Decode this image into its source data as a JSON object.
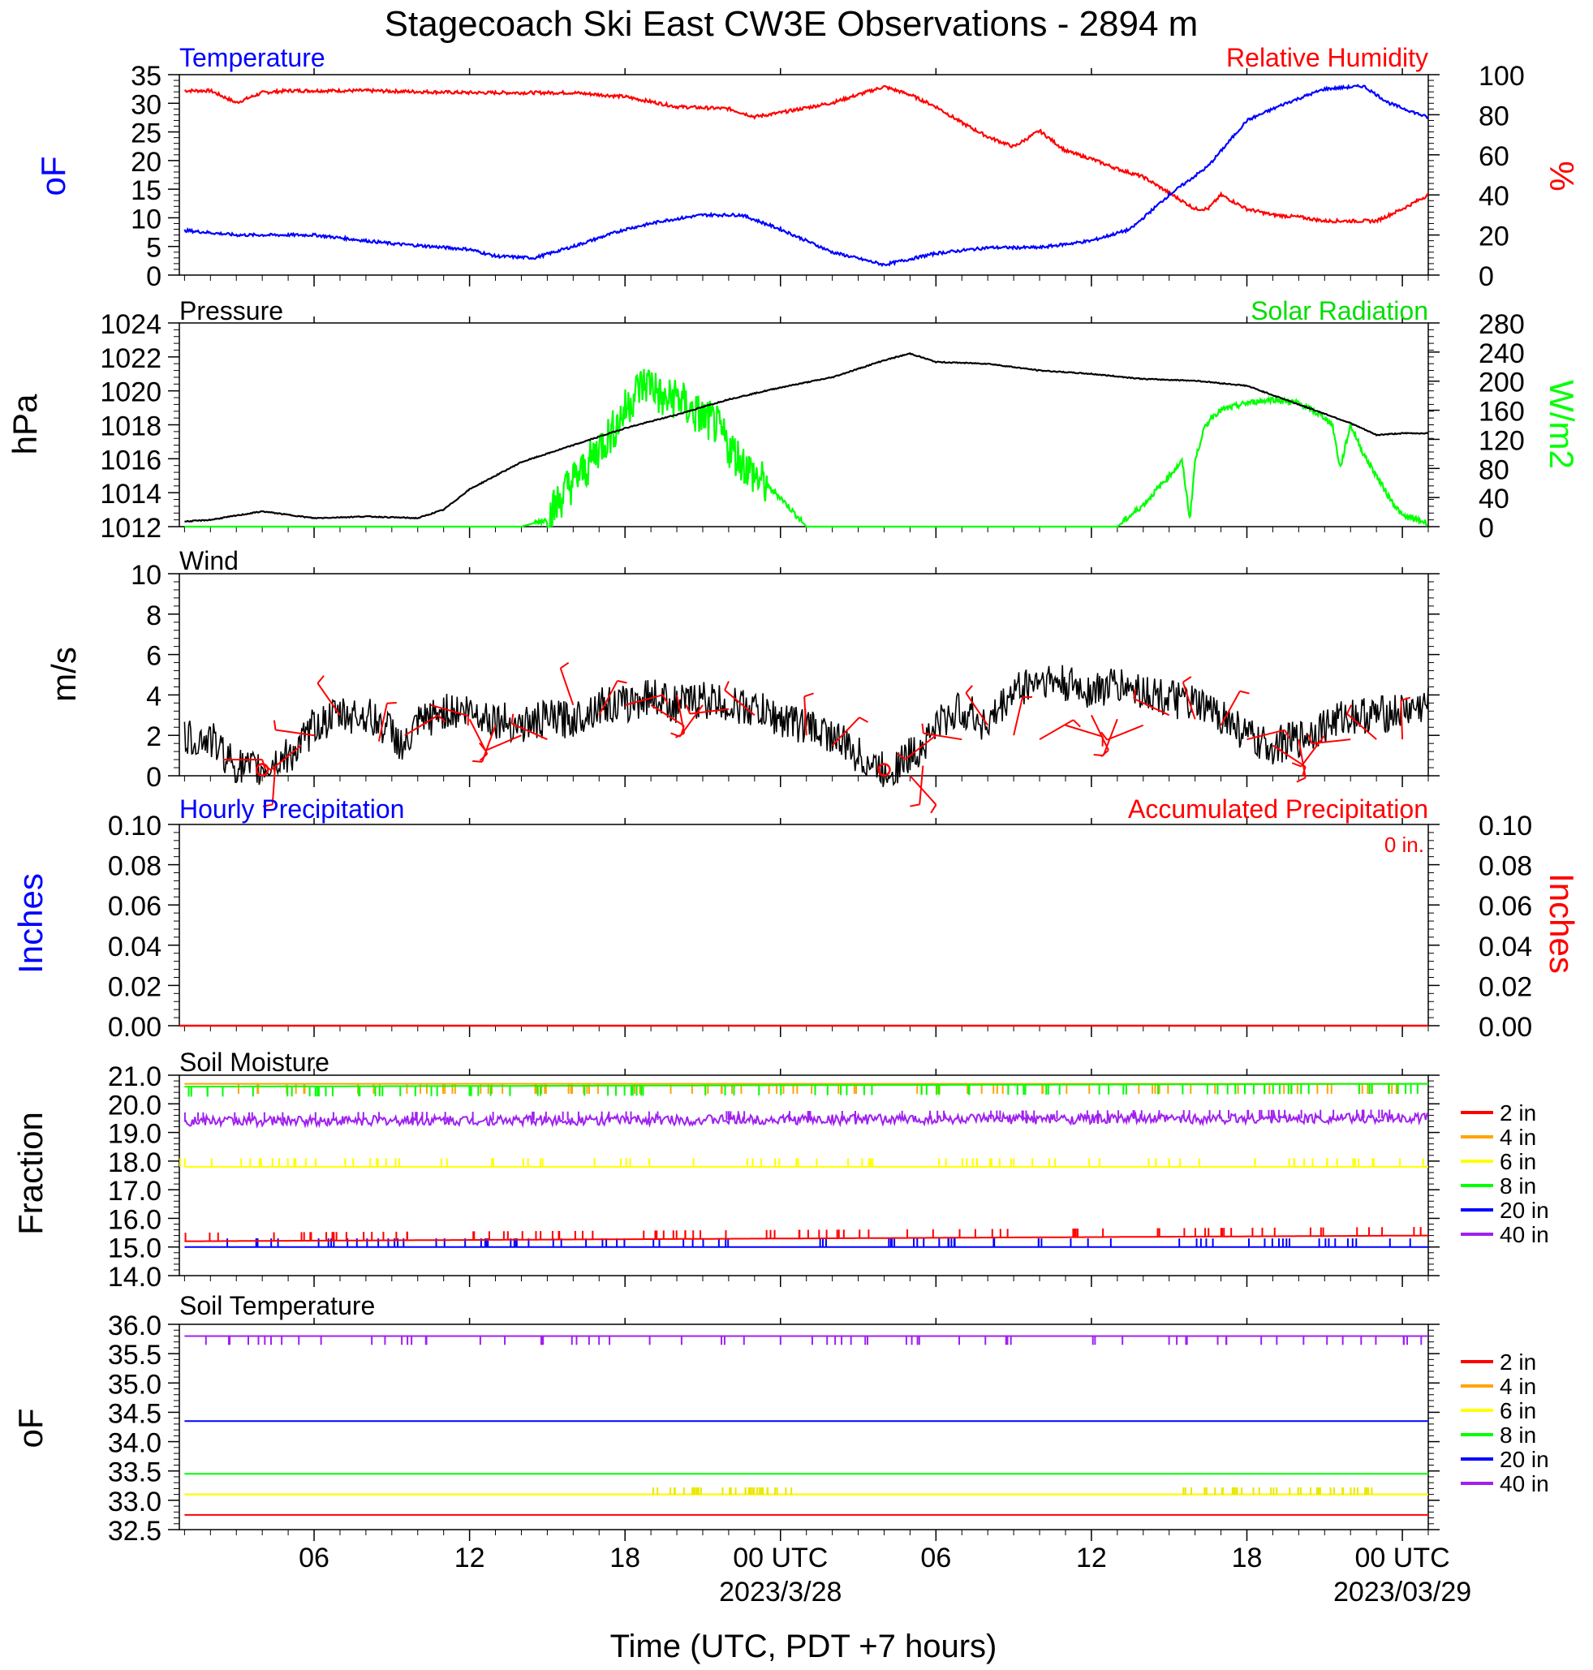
{
  "title": "Stagecoach Ski East CW3E Observations - 2894 m",
  "xlabel": "Time (UTC, PDT +7 hours)",
  "x_ticks": [
    {
      "t": 6,
      "label": "06",
      "sub": ""
    },
    {
      "t": 12,
      "label": "12",
      "sub": ""
    },
    {
      "t": 18,
      "label": "18",
      "sub": ""
    },
    {
      "t": 24,
      "label": "00 UTC",
      "sub": "2023/3/28"
    },
    {
      "t": 30,
      "label": "06",
      "sub": ""
    },
    {
      "t": 36,
      "label": "12",
      "sub": ""
    },
    {
      "t": 42,
      "label": "18",
      "sub": ""
    },
    {
      "t": 48,
      "label": "00 UTC",
      "sub": "2023/03/29"
    }
  ],
  "x_range_hours": [
    0.8,
    49.0
  ],
  "colors": {
    "temperature": "#0000ff",
    "humidity": "#ff0000",
    "pressure": "#000000",
    "solar": "#00ff00",
    "wind": "#000000",
    "barbs": "#ff0000",
    "depth_2in": "#ff0000",
    "depth_4in": "#ffa500",
    "depth_6in": "#ffff00",
    "depth_8in": "#00ff00",
    "depth_20in": "#0000ff",
    "depth_40in": "#a020f0"
  },
  "panels": {
    "temp_rh": {
      "left_title": "Temperature",
      "right_title": "Relative Humidity",
      "ylabel_left": "oF",
      "ylabel_right": "%",
      "yticks_left": [
        "0",
        "5",
        "10",
        "15",
        "20",
        "25",
        "30",
        "35"
      ],
      "yticks_right": [
        "0",
        "20",
        "40",
        "60",
        "80",
        "100"
      ]
    },
    "pressure_solar": {
      "left_title": "Pressure",
      "right_title": "Solar Radiation",
      "ylabel_left": "hPa",
      "ylabel_right": "W/m2",
      "yticks_left": [
        "1012",
        "1014",
        "1016",
        "1018",
        "1020",
        "1022",
        "1024"
      ],
      "yticks_right": [
        "0",
        "40",
        "80",
        "120",
        "160",
        "200",
        "240",
        "280"
      ]
    },
    "wind": {
      "left_title": "Wind",
      "ylabel_left": "m/s",
      "yticks_left": [
        "0",
        "2",
        "4",
        "6",
        "8",
        "10"
      ]
    },
    "precip": {
      "left_title": "Hourly Precipitation",
      "right_title": "Accumulated Precipitation",
      "accum_note": "0 in.",
      "ylabel_left": "Inches",
      "ylabel_right": "Inches",
      "yticks_left": [
        "0.00",
        "0.02",
        "0.04",
        "0.06",
        "0.08",
        "0.10"
      ],
      "yticks_right": [
        "0.00",
        "0.02",
        "0.04",
        "0.06",
        "0.08",
        "0.10"
      ]
    },
    "soil_moisture": {
      "left_title": "Soil Moisture",
      "ylabel_left": "Fraction",
      "yticks_left": [
        "14.0",
        "15.0",
        "16.0",
        "17.0",
        "18.0",
        "19.0",
        "20.0",
        "21.0"
      ],
      "legend": [
        "2 in",
        "4 in",
        "6 in",
        "8 in",
        "20 in",
        "40 in"
      ]
    },
    "soil_temp": {
      "left_title": "Soil Temperature",
      "ylabel_left": "oF",
      "yticks_left": [
        "32.5",
        "33.0",
        "33.5",
        "34.0",
        "34.5",
        "35.0",
        "35.5",
        "36.0"
      ],
      "legend": [
        "2 in",
        "4 in",
        "6 in",
        "8 in",
        "20 in",
        "40 in"
      ]
    }
  },
  "chart_data": [
    {
      "type": "line",
      "title": "Temperature / Relative Humidity",
      "xlabel": "Time (UTC, PDT +7 hours)",
      "ylabel": "oF / %",
      "ylim_left": [
        0,
        35
      ],
      "ylim_right": [
        0,
        100
      ],
      "series": [
        {
          "name": "Temperature",
          "axis": "left",
          "x": [
            1,
            3,
            6,
            9,
            12,
            13,
            14.5,
            16,
            18,
            19.5,
            21,
            22.5,
            24,
            26,
            28,
            30,
            32,
            34,
            36,
            37.5,
            39,
            40.5,
            42,
            43.5,
            45,
            46.5,
            47.5,
            49
          ],
          "y": [
            7.8,
            7,
            7,
            5.5,
            4.5,
            3.3,
            3,
            5,
            8,
            9.5,
            10.5,
            10.5,
            8,
            4,
            1.8,
            3.8,
            4.8,
            4.8,
            6,
            8,
            14,
            19,
            27,
            30,
            32.5,
            33,
            30,
            27.5
          ]
        },
        {
          "name": "Relative Humidity",
          "axis": "right",
          "x": [
            1,
            2,
            3,
            4,
            5,
            8,
            12,
            16,
            18,
            20,
            22,
            23,
            24,
            26,
            28,
            29,
            30,
            31,
            32,
            33,
            34,
            35,
            36,
            37,
            38,
            39,
            40,
            40.5,
            41,
            42,
            43,
            44,
            45,
            46,
            47,
            48,
            49
          ],
          "y": [
            92,
            92,
            86,
            91,
            92,
            92,
            91,
            91,
            89,
            84,
            83,
            79,
            81,
            86,
            94,
            90,
            84,
            76,
            69,
            64,
            72,
            62,
            58,
            53,
            49,
            41,
            33,
            33,
            40,
            33,
            30,
            29,
            27,
            27,
            27,
            33,
            40
          ]
        }
      ]
    },
    {
      "type": "line",
      "title": "Pressure / Solar Radiation",
      "xlabel": "Time (UTC, PDT +7 hours)",
      "ylabel": "hPa / W/m2",
      "ylim_left": [
        1012,
        1024
      ],
      "ylim_right": [
        0,
        280
      ],
      "series": [
        {
          "name": "Pressure",
          "axis": "left",
          "x": [
            1,
            2,
            4,
            6,
            8,
            10,
            11,
            12,
            14,
            16,
            18,
            20,
            22,
            24,
            26,
            28,
            29,
            30,
            32,
            34,
            36,
            38,
            40,
            42,
            44,
            46,
            47,
            48,
            49
          ],
          "y": [
            1012.3,
            1012.4,
            1012.9,
            1012.5,
            1012.6,
            1012.5,
            1013,
            1014.2,
            1015.8,
            1016.8,
            1017.8,
            1018.6,
            1019.5,
            1020.2,
            1020.8,
            1021.8,
            1022.2,
            1021.7,
            1021.6,
            1021.2,
            1021,
            1020.7,
            1020.6,
            1020.3,
            1019.2,
            1018.1,
            1017.4,
            1017.5,
            1017.5
          ]
        },
        {
          "name": "Solar Radiation",
          "axis": "right",
          "x": [
            1,
            12,
            14,
            15,
            15.8,
            16.5,
            17,
            17.5,
            18,
            18.5,
            19,
            19.5,
            20,
            20.5,
            21,
            21.5,
            22,
            22.5,
            23,
            24,
            25,
            26,
            28,
            30,
            32,
            34,
            36,
            37,
            38,
            39,
            39.5,
            39.8,
            40,
            40.3,
            40.6,
            41,
            41.5,
            42,
            43,
            44,
            44.5,
            45,
            45.3,
            45.6,
            46,
            46.5,
            47,
            47.5,
            48,
            49
          ],
          "y": [
            0,
            0,
            0,
            10,
            55,
            80,
            110,
            130,
            160,
            190,
            200,
            170,
            180,
            160,
            150,
            140,
            110,
            90,
            70,
            40,
            0,
            0,
            0,
            0,
            0,
            0,
            0,
            0,
            30,
            70,
            90,
            10,
            90,
            130,
            150,
            160,
            165,
            170,
            175,
            170,
            160,
            150,
            140,
            80,
            140,
            100,
            70,
            40,
            15,
            5
          ]
        }
      ]
    },
    {
      "type": "line",
      "title": "Wind",
      "xlabel": "Time (UTC, PDT +7 hours)",
      "ylabel": "m/s",
      "ylim": [
        0,
        10
      ],
      "series": [
        {
          "name": "Wind",
          "x": [
            1,
            2,
            3,
            3.5,
            4,
            5,
            5.5,
            6,
            7,
            8,
            9,
            9.5,
            10,
            11,
            12,
            13,
            14,
            15,
            16,
            17,
            18,
            19,
            20,
            21,
            22,
            23,
            24,
            25,
            26,
            27,
            28,
            28.5,
            29,
            29.5,
            30,
            31,
            32,
            33,
            34,
            35,
            36,
            37,
            38,
            39,
            40,
            41,
            42,
            42.5,
            43,
            44,
            45,
            46,
            47,
            48,
            49
          ],
          "y": [
            1.8,
            1.8,
            0.5,
            0.3,
            0.3,
            1,
            1.5,
            2.5,
            3,
            3,
            2.2,
            1.3,
            2.5,
            3.2,
            3.2,
            2.8,
            2.5,
            2.8,
            2.8,
            3.5,
            3.5,
            4,
            3.5,
            3.8,
            3.5,
            3.3,
            2.8,
            2.5,
            2,
            1,
            0.2,
            0.5,
            1,
            1.5,
            2.5,
            3.3,
            2.5,
            4.2,
            4.8,
            4.5,
            4.2,
            4.5,
            4.2,
            3.8,
            3.5,
            3,
            2,
            1.5,
            1.5,
            1.8,
            2.5,
            3,
            3,
            3.2,
            3.5
          ]
        },
        {
          "name": "Barbs",
          "x": [
            2.5,
            4,
            4.5,
            5.5,
            6,
            7,
            8.5,
            9.5,
            10.5,
            12,
            13,
            14,
            15,
            16,
            17,
            18,
            19,
            20,
            21,
            22,
            23,
            25,
            26,
            28,
            29,
            29.5,
            30,
            31,
            32,
            33,
            34,
            35,
            36,
            37,
            38,
            39,
            40,
            41,
            42,
            43,
            44,
            45,
            46,
            47,
            48
          ],
          "y": [
            0.8,
            0.5,
            0.5,
            1.5,
            2,
            3,
            1.7,
            2,
            3.5,
            2.8,
            2.5,
            2,
            1.8,
            3.5,
            3,
            3.5,
            3.5,
            4,
            3.5,
            3.3,
            3,
            2,
            1.5,
            0.4,
            0,
            0.5,
            2,
            1.8,
            2.5,
            2,
            1.8,
            2.5,
            3,
            2.8,
            2.5,
            3,
            2.8,
            2.5,
            1.8,
            1.5,
            1.8,
            2,
            1.8,
            1.8,
            1.8
          ]
        }
      ]
    },
    {
      "type": "line",
      "title": "Hourly Precipitation / Accumulated Precipitation",
      "xlabel": "Time (UTC, PDT +7 hours)",
      "ylabel": "Inches",
      "ylim": [
        0,
        0.1
      ],
      "series": [
        {
          "name": "Hourly Precipitation",
          "x": [
            1,
            49
          ],
          "y": [
            0,
            0
          ]
        },
        {
          "name": "Accumulated Precipitation",
          "x": [
            1,
            49
          ],
          "y": [
            0,
            0
          ]
        }
      ]
    },
    {
      "type": "line",
      "title": "Soil Moisture",
      "xlabel": "Time (UTC, PDT +7 hours)",
      "ylabel": "Fraction",
      "ylim": [
        14,
        21
      ],
      "series": [
        {
          "name": "2 in",
          "x": [
            1,
            49
          ],
          "y": [
            15.2,
            15.4
          ]
        },
        {
          "name": "4 in",
          "x": [
            1,
            49
          ],
          "y": [
            20.7,
            20.7
          ]
        },
        {
          "name": "6 in",
          "x": [
            1,
            49
          ],
          "y": [
            17.8,
            17.8
          ]
        },
        {
          "name": "8 in",
          "x": [
            1,
            49
          ],
          "y": [
            20.6,
            20.7
          ]
        },
        {
          "name": "20 in",
          "x": [
            1,
            49
          ],
          "y": [
            15.0,
            15.0
          ]
        },
        {
          "name": "40 in",
          "x": [
            1,
            49
          ],
          "y": [
            19.4,
            19.5
          ]
        }
      ]
    },
    {
      "type": "line",
      "title": "Soil Temperature",
      "xlabel": "Time (UTC, PDT +7 hours)",
      "ylabel": "oF",
      "ylim": [
        32.5,
        36.0
      ],
      "series": [
        {
          "name": "2 in",
          "x": [
            1,
            49
          ],
          "y": [
            32.75,
            32.75
          ]
        },
        {
          "name": "4 in",
          "x": [
            1,
            49
          ],
          "y": [
            33.1,
            33.1
          ]
        },
        {
          "name": "6 in",
          "x": [
            1,
            49
          ],
          "y": [
            33.1,
            33.1
          ]
        },
        {
          "name": "8 in",
          "x": [
            1,
            49
          ],
          "y": [
            33.45,
            33.45
          ]
        },
        {
          "name": "20 in",
          "x": [
            1,
            49
          ],
          "y": [
            34.35,
            34.35
          ]
        },
        {
          "name": "40 in",
          "x": [
            1,
            49
          ],
          "y": [
            35.8,
            35.8
          ]
        }
      ]
    }
  ]
}
